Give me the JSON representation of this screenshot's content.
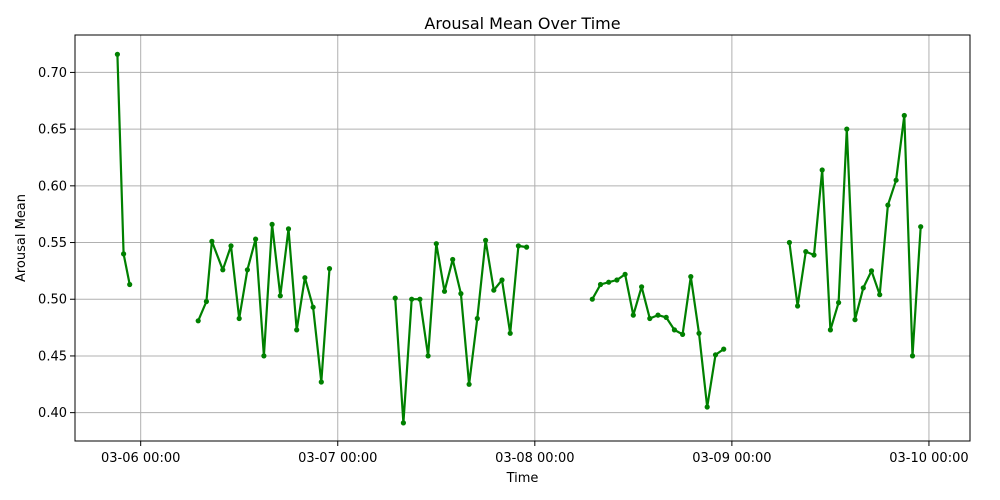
{
  "chart_data": {
    "type": "line",
    "title": "Arousal Mean Over Time",
    "xlabel": "Time",
    "ylabel": "Arousal Mean",
    "x_tick_labels": [
      "03-06 00:00",
      "03-07 00:00",
      "03-08 00:00",
      "03-09 00:00",
      "03-10 00:00"
    ],
    "y_tick_labels": [
      "0.40",
      "0.45",
      "0.50",
      "0.55",
      "0.60",
      "0.65",
      "0.70"
    ],
    "y_ticks": [
      0.4,
      0.45,
      0.5,
      0.55,
      0.6,
      0.65,
      0.7
    ],
    "xlim": [
      "03-05 16:00",
      "03-10 05:00"
    ],
    "ylim": [
      0.375,
      0.733
    ],
    "grid": true,
    "color": "#008000",
    "series": [
      {
        "segments": [
          [
            [
              "03-05 21:10",
              0.716
            ],
            [
              "03-05 21:55",
              0.54
            ],
            [
              "03-05 22:40",
              0.513
            ]
          ],
          [
            [
              "03-06 07:00",
              0.481
            ],
            [
              "03-06 08:00",
              0.498
            ],
            [
              "03-06 08:40",
              0.551
            ],
            [
              "03-06 10:00",
              0.526
            ],
            [
              "03-06 11:00",
              0.547
            ],
            [
              "03-06 12:00",
              0.483
            ],
            [
              "03-06 13:00",
              0.526
            ],
            [
              "03-06 14:00",
              0.553
            ],
            [
              "03-06 15:00",
              0.45
            ],
            [
              "03-06 16:00",
              0.566
            ],
            [
              "03-06 17:00",
              0.503
            ],
            [
              "03-06 18:00",
              0.562
            ],
            [
              "03-06 19:00",
              0.473
            ],
            [
              "03-06 20:00",
              0.519
            ],
            [
              "03-06 21:00",
              0.493
            ],
            [
              "03-06 22:00",
              0.427
            ],
            [
              "03-06 23:00",
              0.527
            ]
          ],
          [
            [
              "03-07 07:00",
              0.501
            ],
            [
              "03-07 08:00",
              0.391
            ],
            [
              "03-07 09:00",
              0.5
            ],
            [
              "03-07 10:00",
              0.5
            ],
            [
              "03-07 11:00",
              0.45
            ],
            [
              "03-07 12:00",
              0.549
            ],
            [
              "03-07 13:00",
              0.507
            ],
            [
              "03-07 14:00",
              0.535
            ],
            [
              "03-07 15:00",
              0.505
            ],
            [
              "03-07 16:00",
              0.425
            ],
            [
              "03-07 17:00",
              0.483
            ],
            [
              "03-07 18:00",
              0.552
            ],
            [
              "03-07 19:00",
              0.508
            ],
            [
              "03-07 20:00",
              0.517
            ],
            [
              "03-07 21:00",
              0.47
            ],
            [
              "03-07 22:00",
              0.547
            ],
            [
              "03-07 23:00",
              0.546
            ]
          ],
          [
            [
              "03-08 07:00",
              0.5
            ],
            [
              "03-08 08:00",
              0.513
            ],
            [
              "03-08 09:00",
              0.515
            ],
            [
              "03-08 10:00",
              0.517
            ],
            [
              "03-08 11:00",
              0.522
            ],
            [
              "03-08 12:00",
              0.486
            ],
            [
              "03-08 13:00",
              0.511
            ],
            [
              "03-08 14:00",
              0.483
            ],
            [
              "03-08 15:00",
              0.486
            ],
            [
              "03-08 16:00",
              0.484
            ],
            [
              "03-08 17:00",
              0.473
            ],
            [
              "03-08 18:00",
              0.469
            ],
            [
              "03-08 19:00",
              0.52
            ],
            [
              "03-08 20:00",
              0.47
            ],
            [
              "03-08 21:00",
              0.405
            ],
            [
              "03-08 22:00",
              0.451
            ],
            [
              "03-08 23:00",
              0.456
            ]
          ],
          [
            [
              "03-09 07:00",
              0.55
            ],
            [
              "03-09 08:00",
              0.494
            ],
            [
              "03-09 09:00",
              0.542
            ],
            [
              "03-09 10:00",
              0.539
            ],
            [
              "03-09 11:00",
              0.614
            ],
            [
              "03-09 12:00",
              0.473
            ],
            [
              "03-09 13:00",
              0.497
            ],
            [
              "03-09 14:00",
              0.65
            ],
            [
              "03-09 15:00",
              0.482
            ],
            [
              "03-09 16:00",
              0.51
            ],
            [
              "03-09 17:00",
              0.525
            ],
            [
              "03-09 18:00",
              0.504
            ],
            [
              "03-09 19:00",
              0.583
            ],
            [
              "03-09 20:00",
              0.605
            ],
            [
              "03-09 21:00",
              0.662
            ],
            [
              "03-09 22:00",
              0.45
            ],
            [
              "03-09 23:00",
              0.564
            ]
          ]
        ]
      }
    ]
  }
}
